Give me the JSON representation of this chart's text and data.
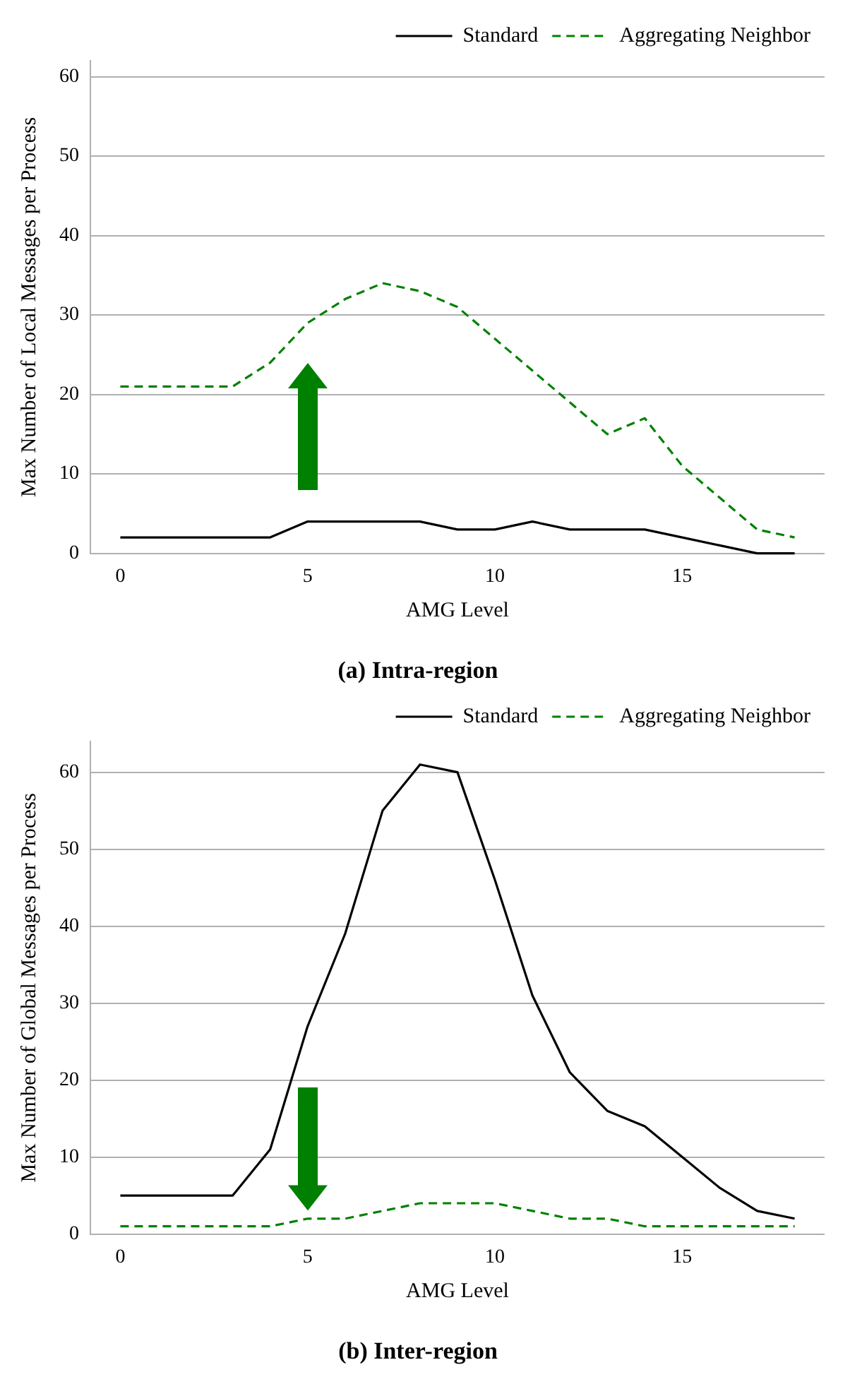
{
  "chart_data": [
    {
      "type": "line",
      "title": "(a) Intra-region",
      "xlabel": "AMG Level",
      "ylabel": "Max Number of Local Messages per Process",
      "x": [
        0,
        1,
        2,
        3,
        4,
        5,
        6,
        7,
        8,
        9,
        10,
        11,
        12,
        13,
        14,
        15,
        16,
        17,
        18
      ],
      "xlim": [
        -0.8,
        18.8
      ],
      "xticks": [
        0,
        5,
        10,
        15
      ],
      "ylim": [
        0,
        62
      ],
      "yticks": [
        0,
        10,
        20,
        30,
        40,
        50,
        60
      ],
      "grid": "y",
      "legend": "top right",
      "marker": "none",
      "series": [
        {
          "name": "Standard",
          "color": "#000000",
          "line_style": "solid",
          "values": [
            2,
            2,
            2,
            2,
            2,
            4,
            4,
            4,
            4,
            3,
            3,
            4,
            3,
            3,
            3,
            2,
            1,
            0,
            0
          ]
        },
        {
          "name": "Aggregating Neighbor",
          "color": "#008000",
          "line_style": "dashed",
          "values": [
            21,
            21,
            21,
            21,
            24,
            29,
            32,
            34,
            33,
            31,
            27,
            23,
            19,
            15,
            17,
            11,
            7,
            3,
            2
          ]
        }
      ]
    },
    {
      "type": "line",
      "title": "(b) Inter-region",
      "xlabel": "AMG Level",
      "ylabel": "Max Number of Global Messages per Process",
      "x": [
        0,
        1,
        2,
        3,
        4,
        5,
        6,
        7,
        8,
        9,
        10,
        11,
        12,
        13,
        14,
        15,
        16,
        17,
        18
      ],
      "xlim": [
        -0.8,
        18.8
      ],
      "xticks": [
        0,
        5,
        10,
        15
      ],
      "ylim": [
        0,
        64
      ],
      "yticks": [
        0,
        10,
        20,
        30,
        40,
        50,
        60
      ],
      "grid": "y",
      "legend": "top right",
      "marker": "none",
      "series": [
        {
          "name": "Standard",
          "color": "#000000",
          "line_style": "solid",
          "values": [
            5,
            5,
            5,
            5,
            11,
            27,
            39,
            55,
            61,
            60,
            46,
            31,
            21,
            16,
            14,
            10,
            6,
            3,
            2
          ]
        },
        {
          "name": "Aggregating Neighbor",
          "color": "#008000",
          "line_style": "dashed",
          "values": [
            1,
            1,
            1,
            1,
            1,
            2,
            2,
            3,
            4,
            4,
            4,
            3,
            2,
            2,
            1,
            1,
            1,
            1,
            1
          ]
        }
      ]
    }
  ]
}
